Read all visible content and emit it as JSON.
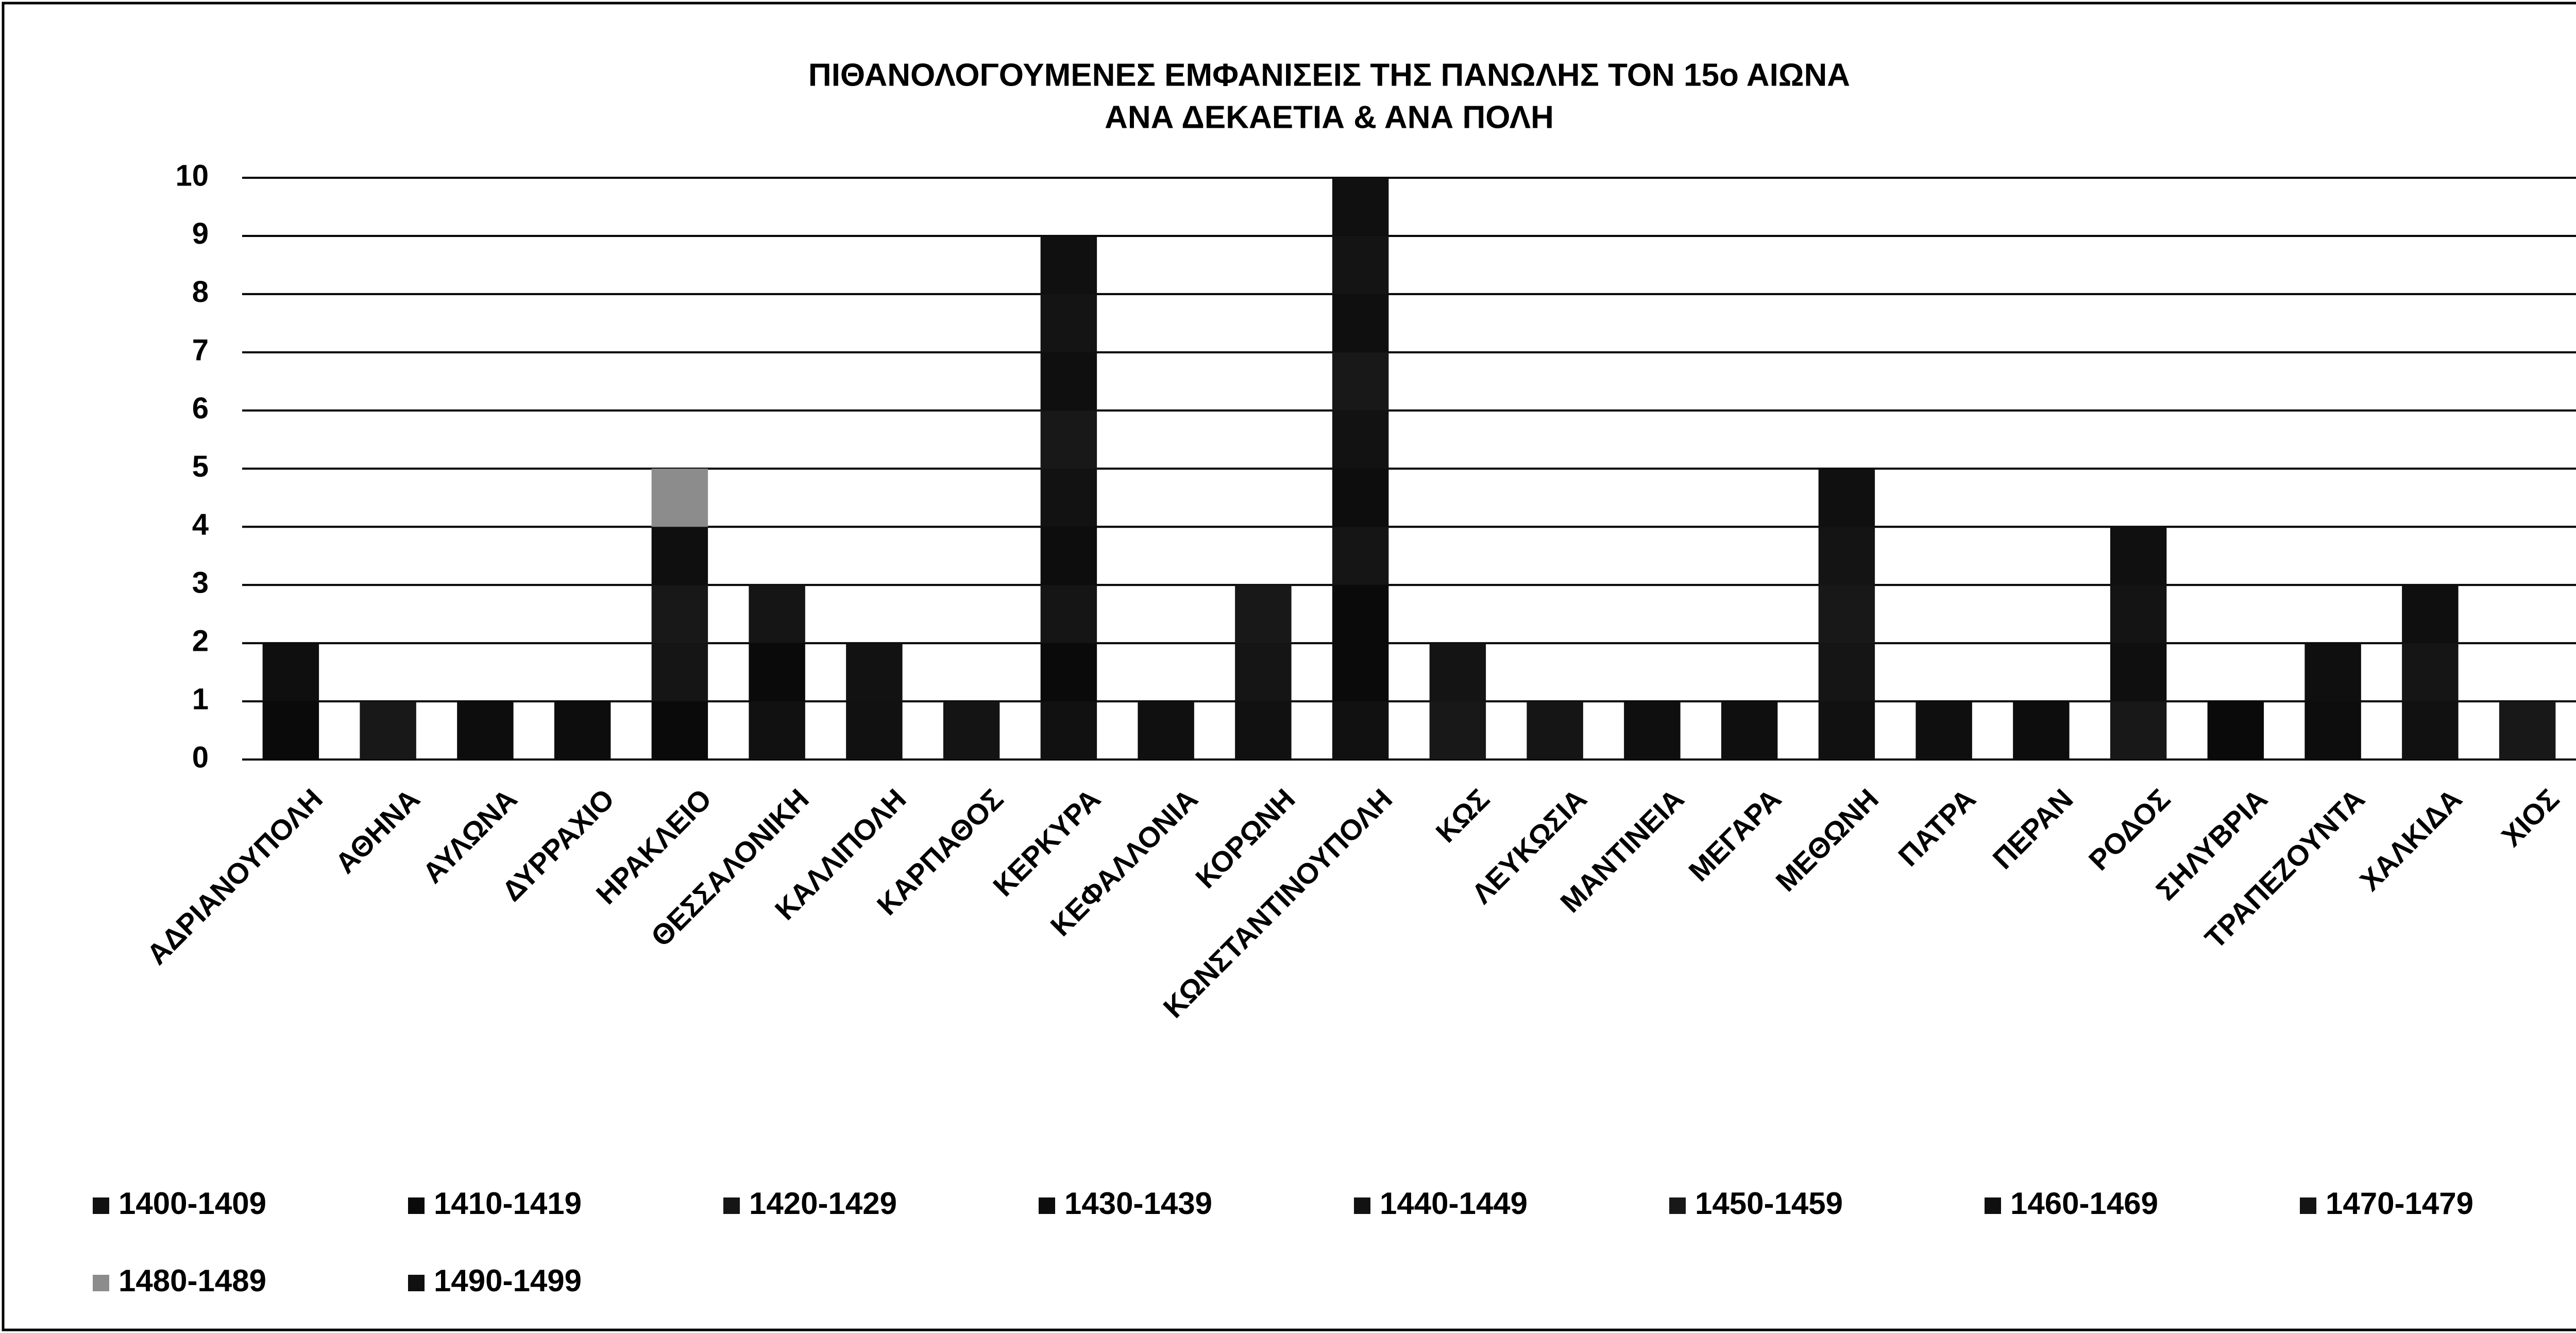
{
  "chart_data": {
    "type": "stacked_bar",
    "title": "ΠΙΘΑΝΟΛΟΓΟΥΜΕΝΕΣ ΕΜΦΑΝΙΣΕΙΣ ΤΗΣ ΠΑΝΩΛΗΣ ΤΟΝ 15ο ΑΙΩΝΑ",
    "subtitle": "ΑΝΑ ΔΕΚΑΕΤΙΑ & ΑΝΑ ΠΟΛΗ",
    "categories": [
      "ΑΔΡΙΑΝΟΥΠΟΛΗ",
      "ΑΘΗΝΑ",
      "ΑΥΛΩΝΑ",
      "ΔΥΡΡΑΧΙΟ",
      "ΗΡΑΚΛΕΙΟ",
      "ΘΕΣΣΑΛΟΝΙΚΗ",
      "ΚΑΛΛΙΠΟΛΗ",
      "ΚΑΡΠΑΘΟΣ",
      "ΚΕΡΚΥΡΑ",
      "ΚΕΦΑΛΛΟΝΙΑ",
      "ΚΟΡΩΝΗ",
      "ΚΩΝΣΤΑΝΤΙΝΟΥΠΟΛΗ",
      "ΚΩΣ",
      "ΛΕΥΚΩΣΙΑ",
      "ΜΑΝΤΙΝΕΙΑ",
      "ΜΕΓΑΡΑ",
      "ΜΕΘΩΝΗ",
      "ΠΑΤΡΑ",
      "ΠΕΡΑΝ",
      "ΡΟΔΟΣ",
      "ΣΗΛΥΒΡΙΑ",
      "ΤΡΑΠΕΖΟΥΝΤΑ",
      "ΧΑΛΚΙΔΑ",
      "ΧΙΟΣ"
    ],
    "series": [
      {
        "name": "1400-1409",
        "color": "#111111",
        "values": [
          0,
          0,
          0,
          0,
          0,
          1,
          1,
          0,
          1,
          0,
          1,
          1,
          0,
          0,
          0,
          0,
          1,
          0,
          0,
          0,
          0,
          0,
          1,
          0
        ]
      },
      {
        "name": "1410-1419",
        "color": "#0a0a0a",
        "values": [
          1,
          0,
          0,
          0,
          1,
          1,
          0,
          0,
          1,
          0,
          0,
          2,
          0,
          0,
          0,
          0,
          0,
          0,
          0,
          0,
          1,
          0,
          0,
          0
        ]
      },
      {
        "name": "1420-1429",
        "color": "#151515",
        "values": [
          0,
          0,
          0,
          0,
          1,
          1,
          0,
          0,
          1,
          0,
          1,
          1,
          0,
          1,
          0,
          0,
          1,
          0,
          0,
          0,
          0,
          0,
          1,
          0
        ]
      },
      {
        "name": "1430-1439",
        "color": "#0d0d0d",
        "values": [
          0,
          0,
          1,
          1,
          0,
          0,
          0,
          0,
          1,
          0,
          0,
          1,
          0,
          0,
          0,
          0,
          0,
          0,
          1,
          0,
          0,
          1,
          0,
          0
        ]
      },
      {
        "name": "1440-1449",
        "color": "#121212",
        "values": [
          0,
          0,
          0,
          0,
          0,
          0,
          1,
          0,
          1,
          0,
          0,
          1,
          0,
          0,
          0,
          0,
          0,
          0,
          0,
          0,
          0,
          0,
          0,
          0
        ]
      },
      {
        "name": "1450-1459",
        "color": "#181818",
        "values": [
          0,
          1,
          0,
          0,
          1,
          0,
          0,
          0,
          1,
          0,
          1,
          1,
          1,
          0,
          0,
          0,
          1,
          0,
          0,
          1,
          0,
          0,
          0,
          1
        ]
      },
      {
        "name": "1460-1469",
        "color": "#0f0f0f",
        "values": [
          1,
          0,
          0,
          0,
          1,
          0,
          0,
          0,
          1,
          0,
          0,
          1,
          0,
          0,
          1,
          1,
          0,
          1,
          0,
          1,
          0,
          1,
          1,
          0
        ]
      },
      {
        "name": "1470-1479",
        "color": "#141414",
        "values": [
          0,
          0,
          0,
          0,
          0,
          0,
          0,
          1,
          1,
          0,
          0,
          1,
          1,
          0,
          0,
          0,
          1,
          0,
          0,
          1,
          0,
          0,
          0,
          0
        ]
      },
      {
        "name": "1480-1489",
        "color": "#8c8c8c",
        "values": [
          0,
          0,
          0,
          0,
          1,
          0,
          0,
          0,
          0,
          0,
          0,
          0,
          0,
          0,
          0,
          0,
          0,
          0,
          0,
          0,
          0,
          0,
          0,
          0
        ]
      },
      {
        "name": "1490-1499",
        "color": "#101010",
        "values": [
          0,
          0,
          0,
          0,
          0,
          0,
          0,
          0,
          1,
          1,
          0,
          1,
          0,
          0,
          0,
          0,
          1,
          0,
          0,
          1,
          0,
          0,
          0,
          0
        ]
      }
    ],
    "ylim": [
      0,
      10
    ],
    "yticks": [
      0,
      1,
      2,
      3,
      4,
      5,
      6,
      7,
      8,
      9,
      10
    ],
    "grid": true,
    "legend": "bottom"
  }
}
